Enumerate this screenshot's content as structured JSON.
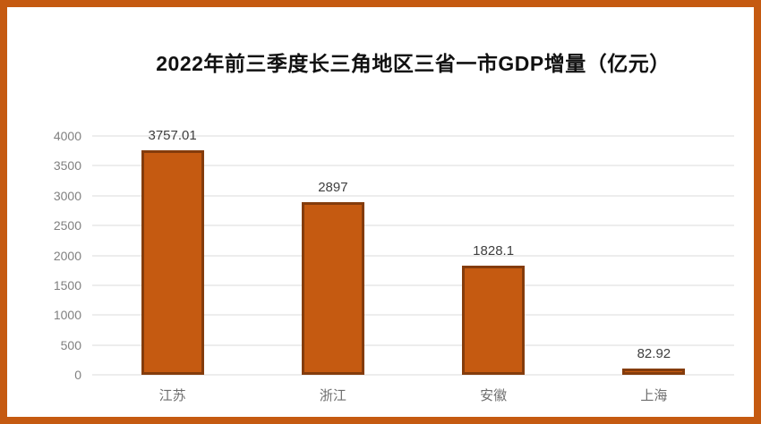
{
  "frame": {
    "border_color": "#C55A11"
  },
  "chart_data": {
    "type": "bar",
    "title": "2022年前三季度长三角地区三省一市GDP增量（亿元）",
    "categories": [
      "江苏",
      "浙江",
      "安徽",
      "上海"
    ],
    "values": [
      3757.01,
      2897,
      1828.1,
      82.92
    ],
    "value_labels": [
      "3757.01",
      "2897",
      "1828.1",
      "82.92"
    ],
    "xlabel": "",
    "ylabel": "",
    "ylim": [
      0,
      4000
    ],
    "ytick_step": 500,
    "ytick_labels": [
      "0",
      "500",
      "1000",
      "1500",
      "2000",
      "2500",
      "3000",
      "3500",
      "4000"
    ],
    "grid": true,
    "legend": false,
    "colors": {
      "bar_fill": "#C55A11",
      "bar_border": "#843C0C",
      "gridline": "#EDEDED",
      "tick_label": "#808080",
      "value_label": "#3F3F3F",
      "category_label": "#6E6E6E",
      "title": "#111111"
    }
  }
}
